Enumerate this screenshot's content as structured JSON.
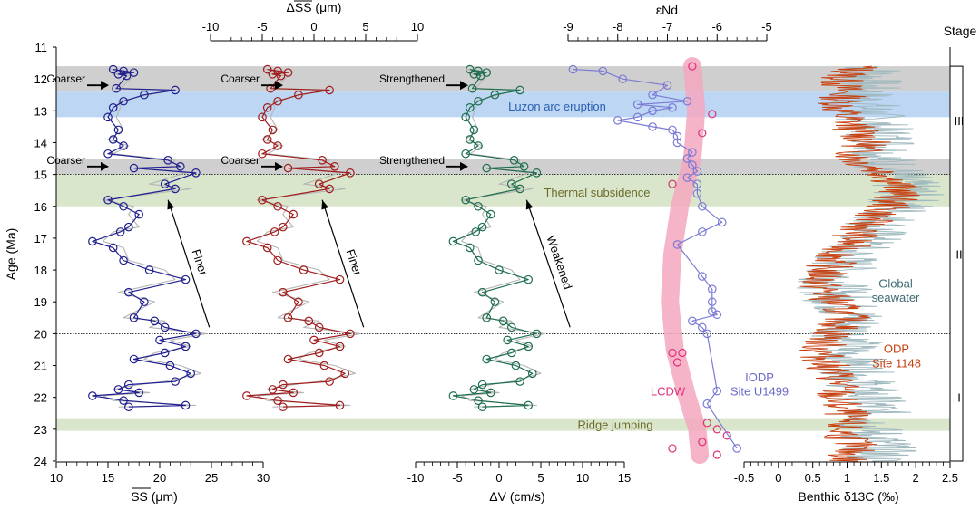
{
  "chart_data": {
    "type": "line",
    "title": "",
    "y_axis": {
      "label": "Age (Ma)",
      "range": [
        11,
        24
      ],
      "ticks": [
        11,
        12,
        13,
        14,
        15,
        16,
        17,
        18,
        19,
        20,
        21,
        22,
        23,
        24
      ]
    },
    "stage_axis": {
      "label": "Stage",
      "stages": [
        "III",
        "II",
        "I"
      ],
      "boundaries_ma": [
        11.6,
        15,
        20,
        24
      ]
    },
    "bands": [
      {
        "name": "coarser-band-1",
        "from": 11.6,
        "to": 12.4,
        "color": "#cfcfcf"
      },
      {
        "name": "luzon-band",
        "from": 12.4,
        "to": 13.2,
        "color": "#bcd6f3",
        "label": "Luzon arc eruption"
      },
      {
        "name": "coarser-band-2",
        "from": 14.5,
        "to": 15.0,
        "color": "#cfcfcf"
      },
      {
        "name": "thermal-band",
        "from": 15.0,
        "to": 16.0,
        "color": "#d9e6cb",
        "label": "Thermal subsidence"
      },
      {
        "name": "ridge-band",
        "from": 22.65,
        "to": 23.05,
        "color": "#d9e6cb",
        "label": "Ridge jumping"
      }
    ],
    "dotted_lines_ma": [
      15.0,
      20.0
    ],
    "series": [
      {
        "name": "SS mean",
        "color": "#1f1f8f",
        "axis": {
          "label": "SS (μm)",
          "position": "bottom",
          "range": [
            10,
            30
          ],
          "ticks": [
            10,
            15,
            20,
            25,
            30
          ]
        },
        "ages": [
          11.7,
          11.75,
          11.8,
          11.85,
          11.9,
          12.3,
          12.35,
          12.5,
          12.7,
          12.9,
          13.2,
          13.6,
          13.9,
          14.1,
          14.35,
          14.55,
          14.75,
          14.8,
          14.95,
          15.3,
          15.45,
          15.8,
          16.0,
          16.25,
          16.65,
          16.8,
          17.1,
          17.3,
          17.7,
          18.0,
          18.3,
          18.7,
          19.0,
          19.5,
          19.6,
          19.8,
          20.0,
          20.2,
          20.4,
          20.6,
          20.8,
          21.0,
          21.25,
          21.5,
          21.6,
          21.75,
          21.85,
          21.95,
          22.1,
          22.25,
          22.3
        ],
        "values": [
          15.5,
          16.5,
          17.5,
          16.0,
          16.8,
          15.8,
          21.5,
          18.5,
          16.5,
          15.5,
          15.0,
          16.0,
          15.5,
          16.5,
          15.0,
          20.8,
          22.0,
          17.5,
          23.5,
          20.5,
          21.5,
          15.0,
          16.5,
          18.0,
          17.0,
          16.2,
          13.5,
          15.5,
          16.5,
          19.0,
          22.5,
          17.0,
          18.5,
          17.5,
          19.5,
          20.5,
          23.5,
          20.0,
          22.5,
          20.5,
          17.5,
          21.0,
          23.0,
          21.5,
          17.0,
          16.0,
          18.0,
          13.5,
          16.5,
          22.5,
          17.0
        ],
        "reference_values": [
          15.2,
          17.0,
          16.8,
          15.5,
          17.5,
          16.2,
          21.0,
          19.0,
          16.0,
          16.2,
          15.8,
          16.5,
          15.0,
          17.0,
          15.5,
          21.5,
          21.0,
          18.5,
          22.5,
          19.0,
          23.0,
          14.5,
          17.5,
          17.0,
          18.0,
          15.5,
          14.5,
          16.5,
          17.0,
          20.5,
          21.5,
          16.0,
          19.5,
          16.5,
          20.5,
          19.0,
          24.5,
          21.0,
          23.0,
          19.5,
          18.5,
          22.0,
          24.0,
          20.5,
          18.0,
          15.5,
          19.0,
          14.5,
          15.5,
          23.5,
          16.0
        ],
        "arrow": {
          "label": "Finer",
          "from_value": 24.8,
          "from_age": 19.8,
          "to_value": 20.8,
          "to_age": 15.8
        },
        "annotations": [
          "Coarser",
          "Coarser"
        ]
      },
      {
        "name": "delta SS",
        "color": "#a11d1d",
        "axis": {
          "label": "ΔSS (μm)",
          "position": "top",
          "range": [
            -10,
            10
          ],
          "ticks": [
            -10,
            -5,
            0,
            5,
            10
          ]
        },
        "ages": [
          11.7,
          11.75,
          11.8,
          11.85,
          11.9,
          12.3,
          12.35,
          12.5,
          12.7,
          12.9,
          13.2,
          13.6,
          13.9,
          14.1,
          14.35,
          14.55,
          14.75,
          14.8,
          14.95,
          15.3,
          15.45,
          15.8,
          16.0,
          16.25,
          16.65,
          16.8,
          17.1,
          17.3,
          17.7,
          18.0,
          18.3,
          18.7,
          19.0,
          19.5,
          19.6,
          19.8,
          20.0,
          20.2,
          20.4,
          20.6,
          20.8,
          21.0,
          21.25,
          21.5,
          21.6,
          21.75,
          21.85,
          21.95,
          22.1,
          22.25,
          22.3
        ],
        "values": [
          -4.5,
          -3.5,
          -2.5,
          -4.0,
          -3.2,
          -4.2,
          1.5,
          -1.5,
          -3.5,
          -4.5,
          -5.0,
          -4.0,
          -4.5,
          -3.5,
          -5.0,
          0.8,
          2.0,
          -2.5,
          3.5,
          0.5,
          1.5,
          -5.0,
          -3.5,
          -2.0,
          -3.0,
          -3.8,
          -6.5,
          -4.5,
          -3.5,
          -1.0,
          2.5,
          -3.0,
          -1.5,
          -2.5,
          -0.5,
          0.5,
          3.5,
          0.0,
          2.5,
          0.5,
          -2.5,
          1.0,
          3.0,
          1.5,
          -3.0,
          -4.0,
          -2.0,
          -6.5,
          -3.5,
          2.5,
          -3.0
        ],
        "reference_values": [
          -4.8,
          -3.0,
          -3.2,
          -4.5,
          -2.5,
          -3.8,
          1.0,
          -1.0,
          -4.0,
          -3.8,
          -4.2,
          -3.5,
          -5.0,
          -3.0,
          -4.5,
          1.5,
          1.0,
          -1.5,
          2.5,
          -1.0,
          3.0,
          -5.5,
          -2.5,
          -3.0,
          -2.0,
          -4.5,
          -5.5,
          -3.5,
          -3.0,
          0.5,
          1.5,
          -4.0,
          -0.5,
          -3.5,
          0.5,
          -1.0,
          4.5,
          1.0,
          3.0,
          -0.5,
          -1.5,
          2.0,
          4.0,
          0.5,
          -2.0,
          -4.5,
          -1.0,
          -5.5,
          -4.5,
          3.5,
          -4.0
        ],
        "arrow": {
          "label": "Finer",
          "from_value": 4.8,
          "from_age": 19.8,
          "to_value": 0.8,
          "to_age": 15.8
        },
        "annotations": [
          "Coarser",
          "Coarser"
        ]
      },
      {
        "name": "delta V",
        "color": "#1e6e4e",
        "axis": {
          "label": "ΔV (cm/s)",
          "position": "bottom",
          "range": [
            -10,
            15
          ],
          "ticks": [
            -10,
            -5,
            0,
            5,
            10,
            15
          ]
        },
        "ages": [
          11.7,
          11.75,
          11.8,
          11.85,
          11.9,
          12.3,
          12.35,
          12.5,
          12.7,
          12.9,
          13.2,
          13.6,
          13.9,
          14.1,
          14.35,
          14.55,
          14.75,
          14.8,
          14.95,
          15.3,
          15.45,
          15.8,
          16.0,
          16.25,
          16.65,
          16.8,
          17.1,
          17.3,
          17.7,
          18.0,
          18.3,
          18.7,
          19.0,
          19.5,
          19.6,
          19.8,
          20.0,
          20.2,
          20.4,
          20.6,
          20.8,
          21.0,
          21.25,
          21.5,
          21.6,
          21.75,
          21.85,
          21.95,
          22.1,
          22.25,
          22.3
        ],
        "values": [
          -3.5,
          -2.5,
          -1.5,
          -3.0,
          -2.2,
          -3.2,
          2.5,
          -0.5,
          -2.5,
          -3.5,
          -4.0,
          -3.0,
          -3.5,
          -2.5,
          -4.0,
          1.8,
          3.0,
          -1.5,
          4.5,
          1.5,
          2.5,
          -4.0,
          -2.5,
          -1.0,
          -2.0,
          -2.8,
          -5.5,
          -3.5,
          -2.5,
          0.0,
          3.5,
          -2.0,
          -0.5,
          -1.5,
          0.5,
          1.5,
          4.5,
          1.0,
          3.5,
          1.5,
          -1.5,
          2.0,
          4.0,
          2.5,
          -2.0,
          -3.0,
          -1.0,
          -5.5,
          -2.5,
          3.5,
          -2.0
        ],
        "reference_values": [
          -3.8,
          -2.0,
          -2.2,
          -3.5,
          -1.5,
          -2.8,
          2.0,
          0.0,
          -3.0,
          -2.8,
          -3.2,
          -2.5,
          -4.0,
          -2.0,
          -3.5,
          2.5,
          2.0,
          -0.5,
          3.5,
          0.0,
          4.0,
          -4.5,
          -1.5,
          -2.0,
          -1.0,
          -3.5,
          -4.5,
          -2.5,
          -2.0,
          1.5,
          2.5,
          -3.0,
          0.5,
          -2.5,
          1.5,
          0.0,
          5.5,
          2.0,
          4.0,
          0.5,
          -0.5,
          3.0,
          5.0,
          1.5,
          -1.0,
          -3.5,
          0.0,
          -4.5,
          -3.5,
          4.5,
          -3.0
        ],
        "arrow": {
          "label": "Weakened",
          "from_value": 8.5,
          "from_age": 19.8,
          "to_value": 3.3,
          "to_age": 15.8
        },
        "annotations": [
          "Strengthened",
          "Strengthened"
        ]
      },
      {
        "name": "εNd",
        "color": "#7b7bd6",
        "axis": {
          "label": "εNd",
          "position": "top",
          "range": [
            -9,
            -5
          ],
          "ticks": [
            -9,
            -8,
            -7,
            -6,
            -5
          ]
        },
        "ages": [
          11.7,
          11.75,
          12.0,
          12.2,
          12.5,
          12.7,
          12.8,
          12.9,
          13.0,
          13.2,
          13.3,
          13.5,
          13.6,
          13.8,
          14.0,
          14.3,
          14.5,
          14.7,
          14.9,
          15.1,
          15.3,
          15.6,
          16.0,
          16.5,
          16.8,
          17.2,
          18.2,
          18.6,
          19.0,
          19.3,
          19.4,
          19.6,
          19.8,
          20.0,
          21.8,
          22.2,
          23.6
        ],
        "values": [
          -8.9,
          -8.3,
          -7.9,
          -7.0,
          -7.3,
          -6.6,
          -7.6,
          -6.9,
          -7.3,
          -7.6,
          -8.0,
          -7.3,
          -6.9,
          -6.8,
          -6.8,
          -6.5,
          -6.6,
          -6.5,
          -6.4,
          -6.6,
          -6.4,
          -6.4,
          -6.3,
          -5.9,
          -6.3,
          -6.8,
          -6.3,
          -6.1,
          -6.1,
          -6.1,
          -6.0,
          -6.5,
          -6.3,
          -6.2,
          -6.0,
          -6.2,
          -5.6
        ],
        "labels": [
          "IODP",
          "Site U1499"
        ]
      },
      {
        "name": "LCDW",
        "color": "#e0307a",
        "axis_ref": "εNd",
        "ages": [
          11.6,
          13.1,
          13.7,
          15.3,
          20.6,
          20.6,
          20.9,
          22.8,
          23.0,
          23.2,
          23.4,
          23.6,
          23.8
        ],
        "values": [
          -6.5,
          -6.1,
          -6.3,
          -6.9,
          -6.9,
          -6.7,
          -6.8,
          -6.2,
          -6.0,
          -5.8,
          -6.3,
          -6.9,
          -6.0
        ],
        "label": "LCDW"
      },
      {
        "name": "Benthic δ13C",
        "color": "#c8400f",
        "axis": {
          "label": "Benthic δ13C (‰)",
          "position": "bottom",
          "range": [
            -0.5,
            2.5
          ],
          "ticks": [
            -0.5,
            0,
            0.5,
            1,
            1.5,
            2,
            2.5
          ]
        },
        "ages": [
          11.6,
          12.0,
          12.5,
          13.0,
          13.5,
          14.0,
          14.5,
          15.0,
          15.5,
          16.0,
          16.5,
          17.0,
          17.5,
          18.0,
          18.5,
          19.0,
          19.5,
          20.0,
          20.5,
          21.0,
          21.5,
          22.0,
          22.5,
          23.0,
          23.5,
          24.0
        ],
        "values": [
          1.2,
          0.9,
          0.95,
          0.9,
          1.1,
          1.3,
          1.1,
          1.6,
          1.8,
          1.6,
          1.3,
          1.1,
          0.9,
          0.7,
          0.6,
          0.8,
          1.0,
          0.8,
          0.6,
          0.7,
          0.9,
          0.8,
          1.0,
          0.9,
          1.1,
          1.0
        ],
        "labels": [
          "ODP",
          "Site 1148"
        ]
      },
      {
        "name": "Global seawater",
        "color": "#9fb9bf",
        "axis_ref": "Benthic δ13C",
        "ages": [
          11.6,
          12.0,
          12.5,
          13.0,
          13.5,
          14.0,
          14.5,
          15.0,
          15.5,
          16.0,
          16.5,
          17.0,
          17.5,
          18.0,
          18.5,
          19.0,
          19.5,
          20.0,
          20.5,
          21.0,
          21.5,
          22.0,
          22.5,
          23.0,
          23.5,
          24.0
        ],
        "values": [
          1.4,
          1.3,
          1.2,
          1.3,
          1.4,
          1.6,
          1.5,
          1.7,
          1.9,
          1.8,
          1.5,
          1.3,
          1.0,
          0.9,
          0.8,
          0.9,
          1.1,
          1.0,
          1.0,
          1.1,
          1.2,
          1.3,
          1.4,
          1.3,
          1.5,
          1.4
        ],
        "label_lines": [
          "Global",
          "seawater"
        ]
      }
    ]
  }
}
